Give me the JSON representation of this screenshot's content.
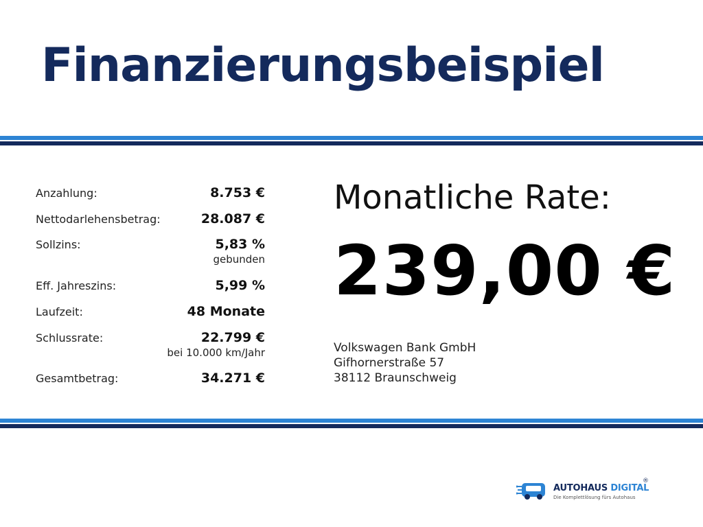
{
  "title": "Finanzierungsbeispiel",
  "terms": [
    {
      "label": "Anzahlung:",
      "value": "8.753 €",
      "note": ""
    },
    {
      "label": "Nettodarlehensbetrag:",
      "value": "28.087 €",
      "note": ""
    },
    {
      "label": "Sollzins:",
      "value": "5,83 %",
      "note": "gebunden"
    },
    {
      "label": "Eff. Jahreszins:",
      "value": "5,99 %",
      "note": ""
    },
    {
      "label": "Laufzeit:",
      "value": "48 Monate",
      "note": ""
    },
    {
      "label": "Schlussrate:",
      "value": "22.799 €",
      "note": "bei 10.000 km/Jahr"
    },
    {
      "label": "Gesamtbetrag:",
      "value": "34.271 €",
      "note": ""
    }
  ],
  "rate": {
    "label": "Monatliche Rate:",
    "value": "239,00 €"
  },
  "bank": {
    "name": "Volkswagen Bank GmbH",
    "street": "Gifhornerstraße 57",
    "city": "38112 Braunschweig"
  },
  "logo": {
    "name_main": "AUTOHAUS",
    "name_accent": "DIGITAL",
    "registered": "®",
    "tagline": "Die Komplettlösung fürs Autohaus",
    "icon": "car-circuit-icon"
  },
  "colors": {
    "navy": "#142a5c",
    "blue": "#2d84d4"
  }
}
